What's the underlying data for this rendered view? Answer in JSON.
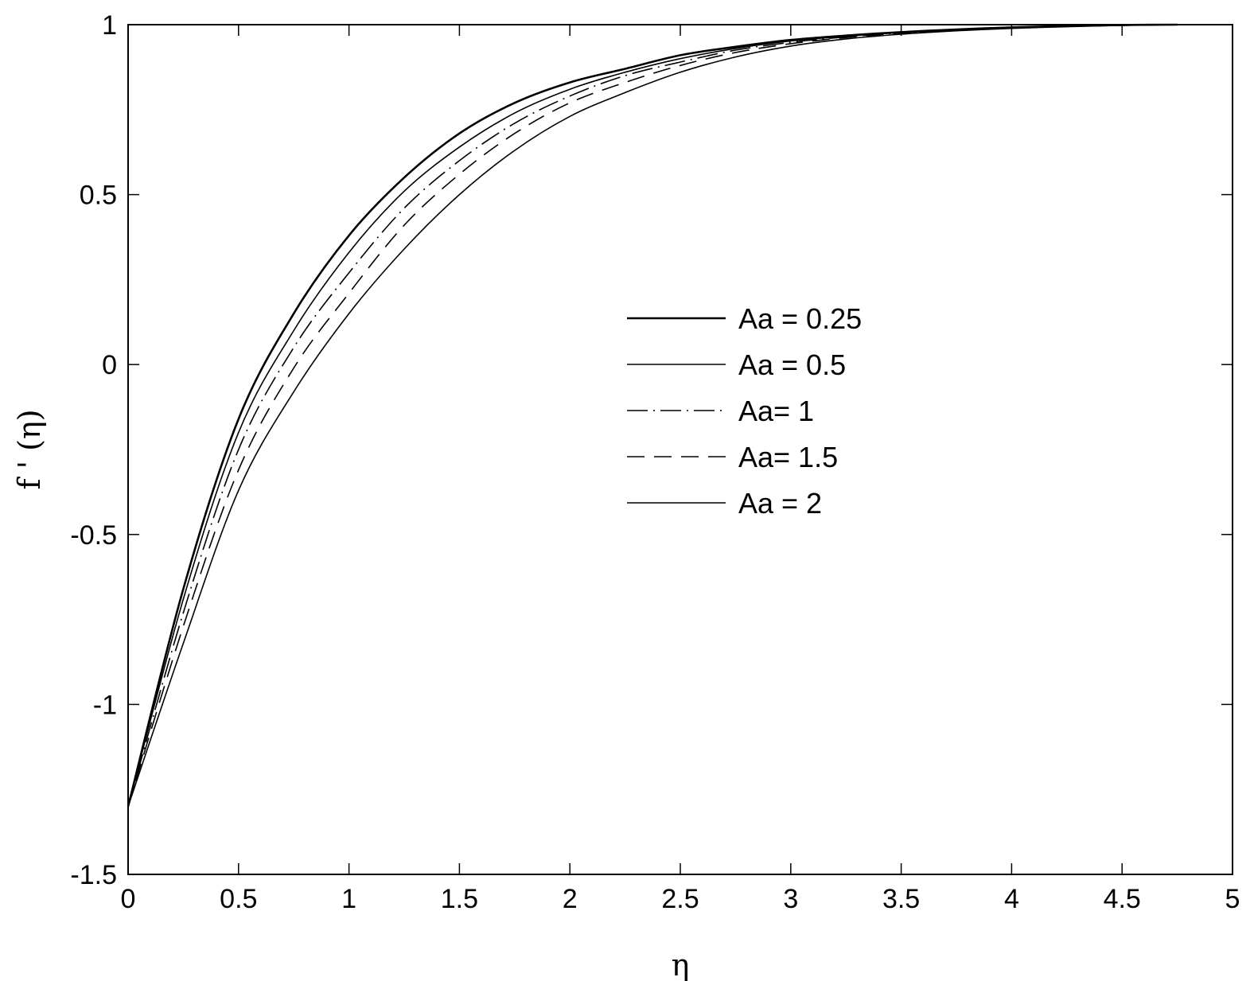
{
  "chart_data": {
    "type": "line",
    "title": "",
    "xlabel": "η",
    "ylabel": "f ' (η)",
    "xlim": [
      0,
      5
    ],
    "ylim": [
      -1.5,
      1
    ],
    "xticks": [
      "0",
      "0.5",
      "1",
      "1.5",
      "2",
      "2.5",
      "3",
      "3.5",
      "4",
      "4.5",
      "5"
    ],
    "yticks": [
      "-1.5",
      "-1",
      "-0.5",
      "0",
      "0.5",
      "1"
    ],
    "grid": false,
    "legend_position": "center-right",
    "x": [
      0,
      0.25,
      0.5,
      0.75,
      1,
      1.25,
      1.5,
      1.75,
      2,
      2.25,
      2.5,
      2.75,
      3,
      3.25,
      3.5,
      3.75,
      4,
      4.25,
      4.5,
      4.75
    ],
    "series": [
      {
        "name": "Aa = 0.25",
        "dash": "solid",
        "width": 2.6,
        "values": [
          -1.3,
          -0.66,
          -0.16,
          0.15,
          0.38,
          0.55,
          0.68,
          0.77,
          0.83,
          0.87,
          0.91,
          0.935,
          0.955,
          0.968,
          0.978,
          0.986,
          0.992,
          0.996,
          0.999,
          1.0
        ]
      },
      {
        "name": "Aa = 0.5",
        "dash": "solid",
        "width": 1.6,
        "values": [
          -1.3,
          -0.69,
          -0.2,
          0.1,
          0.33,
          0.51,
          0.64,
          0.74,
          0.81,
          0.86,
          0.9,
          0.93,
          0.952,
          0.966,
          0.977,
          0.985,
          0.991,
          0.995,
          0.998,
          1.0
        ]
      },
      {
        "name": "Aa= 1",
        "dash": "26 7 2 7",
        "width": 1.6,
        "values": [
          -1.3,
          -0.73,
          -0.25,
          0.05,
          0.27,
          0.46,
          0.6,
          0.71,
          0.79,
          0.85,
          0.89,
          0.925,
          0.948,
          0.964,
          0.976,
          0.984,
          0.99,
          0.995,
          0.998,
          1.0
        ]
      },
      {
        "name": "Aa= 1.5",
        "dash": "22 12",
        "width": 1.6,
        "values": [
          -1.3,
          -0.77,
          -0.31,
          -0.01,
          0.21,
          0.41,
          0.56,
          0.68,
          0.77,
          0.83,
          0.88,
          0.918,
          0.944,
          0.962,
          0.975,
          0.983,
          0.99,
          0.995,
          0.998,
          1.0
        ]
      },
      {
        "name": "Aa = 2",
        "dash": "solid",
        "width": 1.6,
        "values": [
          -1.3,
          -0.82,
          -0.37,
          -0.08,
          0.15,
          0.34,
          0.5,
          0.63,
          0.73,
          0.8,
          0.86,
          0.905,
          0.937,
          0.958,
          0.972,
          0.982,
          0.989,
          0.994,
          0.998,
          1.0
        ]
      }
    ]
  }
}
